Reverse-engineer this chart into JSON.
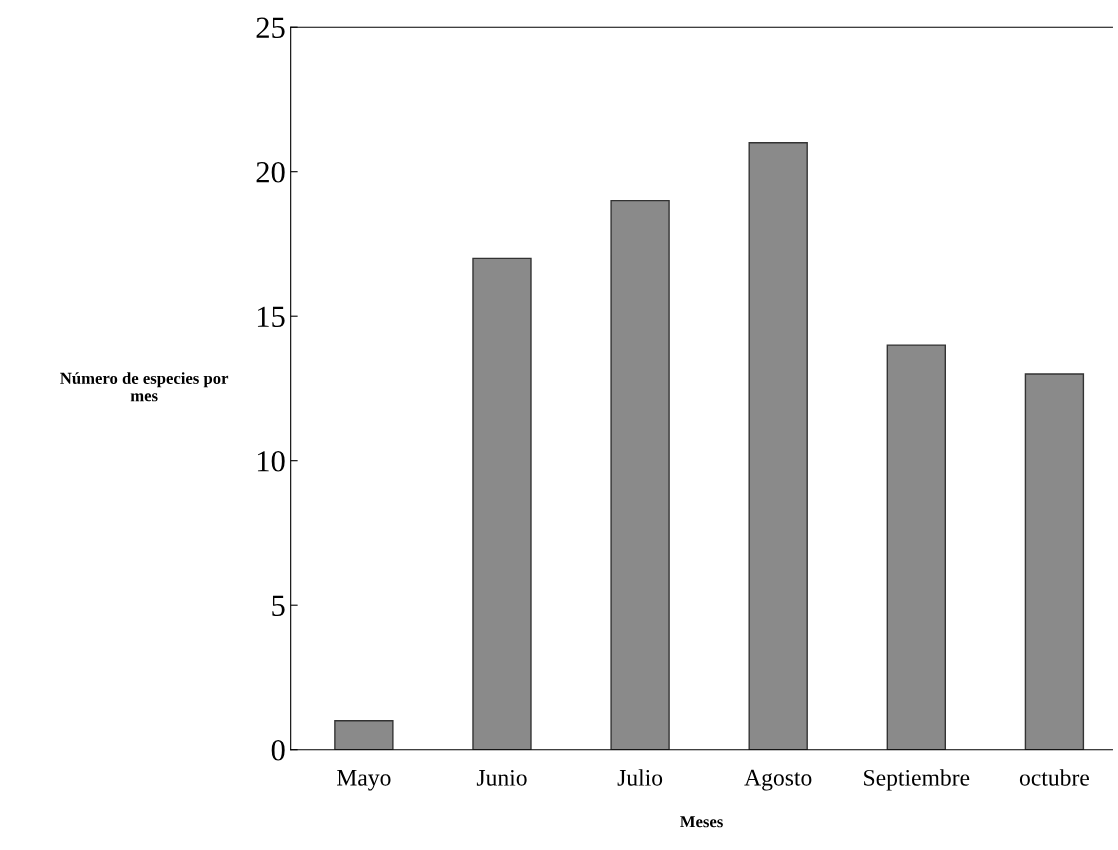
{
  "chart_data": {
    "type": "bar",
    "xlabel": "Meses",
    "ylabel": "Número de especies por mes",
    "categories": [
      "Mayo",
      "Junio",
      "Julio",
      "Agosto",
      "Septiembre",
      "octubre"
    ],
    "values": [
      1,
      17,
      19,
      21,
      14,
      13
    ],
    "color": "#8a8a8a",
    "ylim": [
      0,
      25
    ],
    "yticks": [
      0,
      5,
      10,
      15,
      20,
      25
    ],
    "grid": false,
    "legend": false
  }
}
